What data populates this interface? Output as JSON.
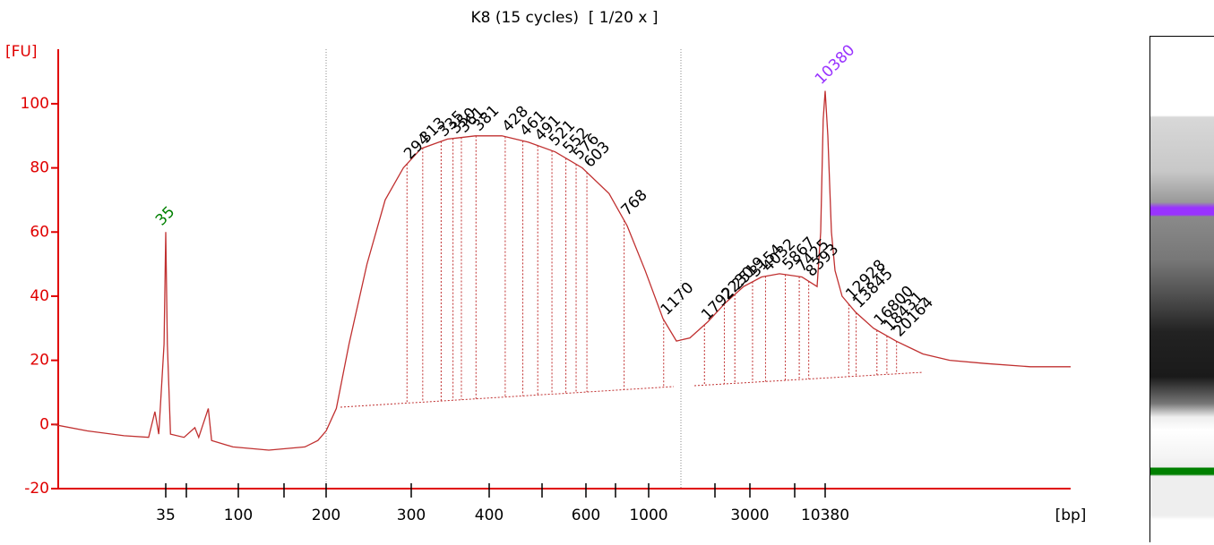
{
  "chart_data": {
    "type": "line",
    "title": "K8 (15 cycles)  [ 1/20 x ]",
    "y_label": "[FU]",
    "x_label": "[bp]",
    "color": "#c03030",
    "axis_color": "#e00000",
    "x": [
      5,
      9,
      17,
      26,
      29,
      31,
      34,
      35,
      36,
      38,
      48,
      56,
      59,
      67,
      70,
      93,
      131,
      173,
      189,
      200,
      210,
      223,
      243,
      265,
      289,
      311,
      343,
      380,
      422,
      472,
      528,
      591,
      677,
      793,
      963,
      1162,
      1337,
      1539,
      1856,
      2266,
      2789,
      3738,
      5248,
      7680,
      9352,
      9796,
      10120,
      10380,
      10643,
      11003,
      11377,
      12155,
      13777,
      16277,
      20044,
      25742,
      33060,
      46140,
      69960,
      101800
    ],
    "values": [
      0,
      -2,
      -3.5,
      -4,
      4,
      -3,
      25,
      60,
      25,
      -3,
      -4,
      -1,
      -4,
      5,
      -5,
      -7,
      -8,
      -7,
      -5,
      -2,
      5,
      25,
      50,
      70,
      80,
      86,
      89,
      90,
      90,
      88,
      85,
      80,
      72,
      62,
      48,
      33,
      26,
      27,
      32,
      38,
      43,
      46,
      47,
      46,
      43,
      60,
      95,
      104,
      90,
      60,
      48,
      40,
      35,
      30,
      26,
      22,
      20,
      19,
      18,
      18
    ],
    "xlim": [
      5,
      101800
    ],
    "ylim": [
      -20,
      117
    ],
    "xticks": [
      35,
      {
        "value": 50,
        "label": null
      },
      100,
      {
        "value": 150,
        "label": null
      },
      200,
      300,
      400,
      {
        "value": 500,
        "label": null
      },
      600,
      {
        "value": 700,
        "label": null
      },
      1000,
      {
        "value": 2000,
        "label": null
      },
      3000,
      {
        "value": 7000,
        "label": null
      },
      10380
    ],
    "yticks": [
      -20,
      0,
      20,
      40,
      60,
      80,
      100
    ],
    "lower_marker": {
      "value": 35,
      "color": "#008000"
    },
    "upper_marker": {
      "value": 10380,
      "color": "#9933ff"
    },
    "peaks": [
      294,
      313,
      335,
      350,
      361,
      381,
      428,
      461,
      491,
      521,
      552,
      576,
      603,
      768,
      1170,
      1792,
      2230,
      2519,
      3154,
      4032,
      5867,
      7425,
      8393,
      12928,
      13845,
      16800,
      18431,
      20164
    ],
    "peak_color": "#000000"
  }
}
